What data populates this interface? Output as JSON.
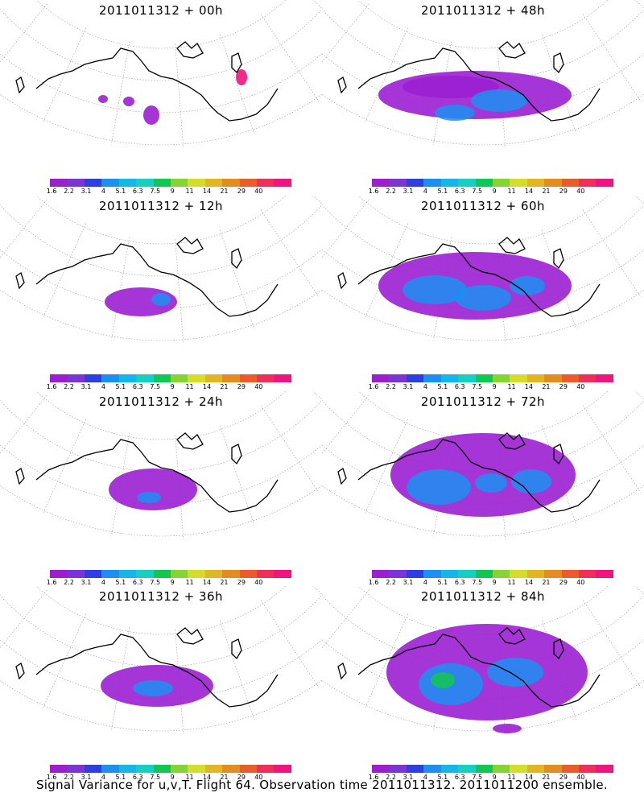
{
  "panels": [
    {
      "title": "2011011312 + 00h",
      "lead_hours": 0
    },
    {
      "title": "2011011312 + 48h",
      "lead_hours": 48
    },
    {
      "title": "2011011312 + 12h",
      "lead_hours": 12
    },
    {
      "title": "2011011312 + 60h",
      "lead_hours": 60
    },
    {
      "title": "2011011312 + 24h",
      "lead_hours": 24
    },
    {
      "title": "2011011312 + 72h",
      "lead_hours": 72
    },
    {
      "title": "2011011312 + 36h",
      "lead_hours": 36
    },
    {
      "title": "2011011312 + 84h",
      "lead_hours": 84
    }
  ],
  "colorbar": {
    "labels": [
      "1.6",
      "2.2",
      "3.1",
      "4",
      "5.1",
      "6.3",
      "7.5",
      "9",
      "11",
      "14",
      "21",
      "29",
      "40"
    ],
    "colors": [
      "#9b1fd1",
      "#7a35d6",
      "#2d3fe0",
      "#1b8ff2",
      "#11b8e8",
      "#14d0c0",
      "#0fc84f",
      "#86d432",
      "#d6dc2a",
      "#e2b623",
      "#e58c21",
      "#ec5b2a",
      "#ee2f5a",
      "#f0147e"
    ]
  },
  "footer": {
    "caption": "Signal Variance for u,v,T. Flight 64. Observation time 2011011312. 2011011200 ensemble."
  }
}
